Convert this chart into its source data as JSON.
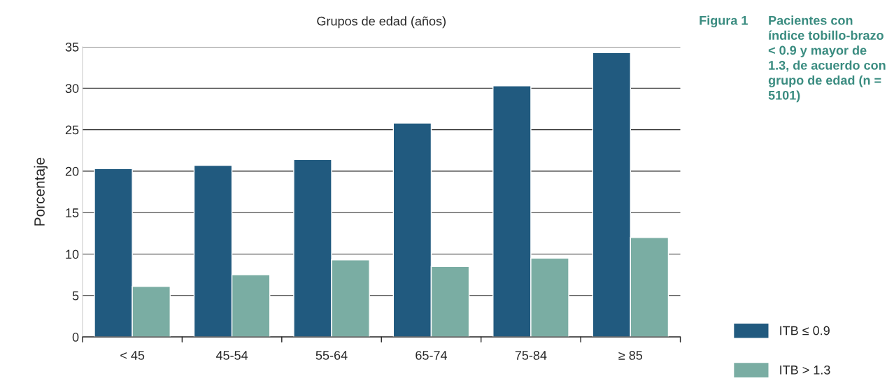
{
  "chart_data": {
    "type": "bar",
    "title": "Grupos de edad (años)",
    "ylabel": "Porcentaje",
    "categories": [
      "< 45",
      "45-54",
      "55-64",
      "65-74",
      "75-84",
      "≥ 85"
    ],
    "series": [
      {
        "name": "ITB ≤ 0.9",
        "color": "#215a7f",
        "values": [
          20.3,
          20.7,
          21.4,
          25.8,
          30.3,
          34.3
        ]
      },
      {
        "name": "ITB > 1.3",
        "color": "#7aada3",
        "values": [
          6.1,
          7.5,
          9.3,
          8.5,
          9.5,
          12.0
        ]
      }
    ],
    "ylim": [
      0,
      35
    ],
    "yticks": [
      0,
      5,
      10,
      15,
      20,
      25,
      30,
      35
    ],
    "grid": "y",
    "legend": "bottom right",
    "annotations": [
      "Figura 1",
      "Pacientes con índice tobillo-brazo < 0.9 y mayor de 1.3, de acuerdo con grupo de edad (n = 5101)"
    ]
  }
}
